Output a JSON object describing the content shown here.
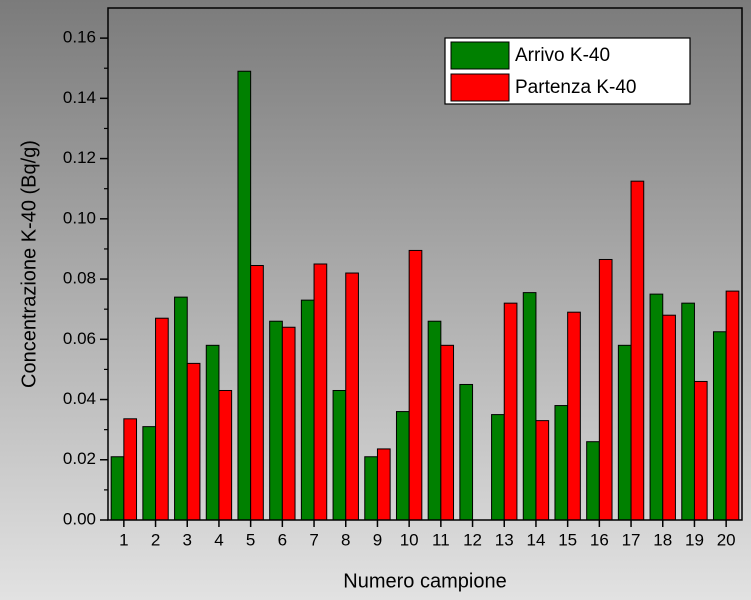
{
  "chart_data": {
    "type": "bar",
    "xlabel": "Numero campione",
    "ylabel": "Concentrazione K-40 (Bq/g)",
    "categories": [
      "1",
      "2",
      "3",
      "4",
      "5",
      "6",
      "7",
      "8",
      "9",
      "10",
      "11",
      "12",
      "13",
      "14",
      "15",
      "16",
      "17",
      "18",
      "19",
      "20"
    ],
    "series": [
      {
        "name": "Arrivo K-40",
        "color": "#008000",
        "values": [
          0.021,
          0.031,
          0.074,
          0.058,
          0.149,
          0.066,
          0.073,
          0.043,
          0.021,
          0.036,
          0.066,
          0.045,
          0.035,
          0.0755,
          0.038,
          0.026,
          0.058,
          0.075,
          0.072,
          0.0625
        ]
      },
      {
        "name": "Partenza K-40",
        "color": "#ff0000",
        "values": [
          0.0336,
          0.067,
          0.052,
          0.043,
          0.0845,
          0.064,
          0.085,
          0.082,
          0.0236,
          0.0895,
          0.058,
          null,
          0.072,
          0.033,
          0.069,
          0.0865,
          0.1125,
          0.068,
          0.046,
          0.076
        ]
      }
    ],
    "ylim": [
      0,
      0.17
    ],
    "yticks": [
      {
        "value": 0,
        "label": "0.00"
      },
      {
        "value": 0.02,
        "label": "0.02"
      },
      {
        "value": 0.04,
        "label": "0.04"
      },
      {
        "value": 0.06,
        "label": "0.06"
      },
      {
        "value": 0.08,
        "label": "0.08"
      },
      {
        "value": 0.1,
        "label": "0.10"
      },
      {
        "value": 0.12,
        "label": "0.12"
      },
      {
        "value": 0.14,
        "label": "0.14"
      },
      {
        "value": 0.16,
        "label": "0.16"
      }
    ],
    "legend": "upper right"
  }
}
